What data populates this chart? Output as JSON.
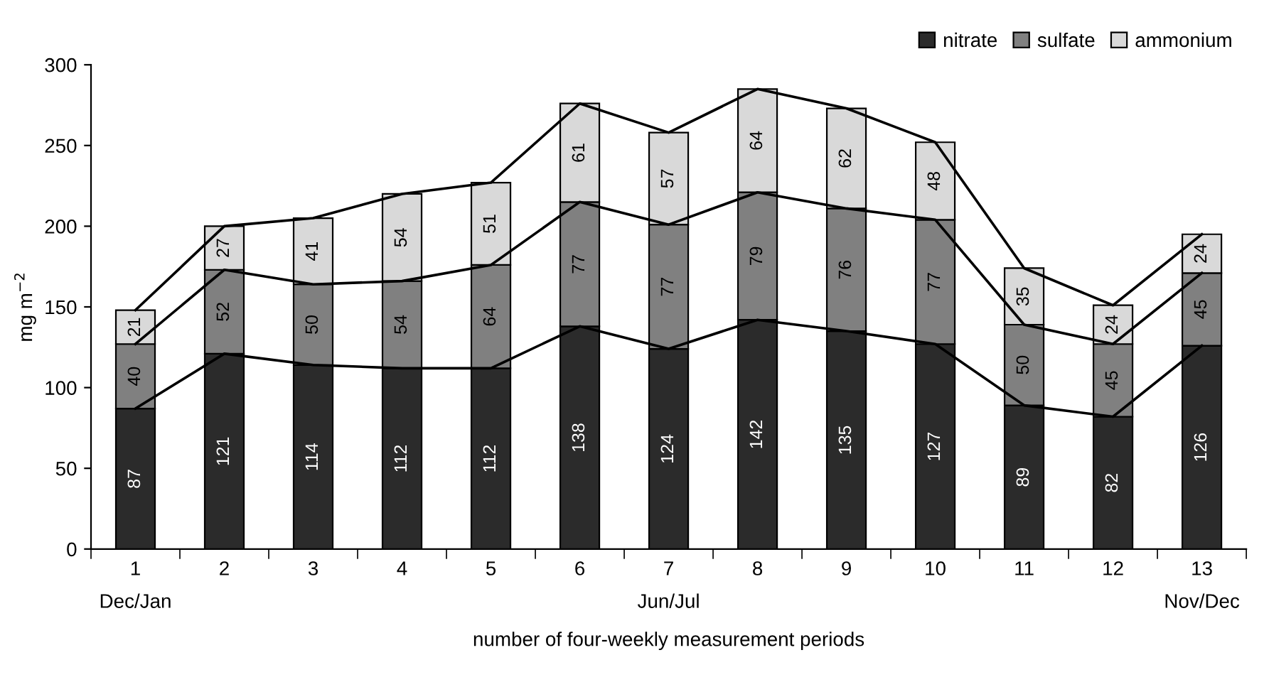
{
  "chart_data": {
    "type": "bar",
    "stacked": true,
    "xlabel": "number of four-weekly measurement periods",
    "ylabel": "mg m$^{−2}$",
    "categories": [
      "1\nDec/Jan",
      "2",
      "3",
      "4",
      "5",
      "6",
      "7\nJun/Jul",
      "8",
      "9",
      "10",
      "11",
      "12",
      "13\nNov/Dec"
    ],
    "series": [
      {
        "name": "nitrate",
        "color": "#2b2b2b",
        "values": [
          87,
          121,
          114,
          112,
          112,
          138,
          124,
          142,
          135,
          127,
          89,
          82,
          126
        ]
      },
      {
        "name": "sulfate",
        "color": "#808080",
        "values": [
          40,
          52,
          50,
          54,
          64,
          77,
          77,
          79,
          76,
          77,
          50,
          45,
          45
        ]
      },
      {
        "name": "ammonium",
        "color": "#d9d9d9",
        "values": [
          21,
          27,
          41,
          54,
          51,
          61,
          57,
          64,
          62,
          48,
          35,
          24,
          24
        ]
      },
      {
        "type": "line",
        "color": "#000000",
        "values": [
          87,
          121,
          114,
          112,
          112,
          138,
          124,
          142,
          135,
          127,
          89,
          82,
          126
        ],
        "value_labels": [
          null,
          null,
          null,
          null,
          null,
          null,
          null,
          null,
          null,
          null,
          null,
          null,
          null
        ]
      },
      {
        "type": "line",
        "color": "#000000",
        "values": [
          127,
          173,
          164,
          166,
          176,
          215,
          201,
          221,
          211,
          204,
          139,
          127,
          171
        ],
        "value_labels": [
          null,
          null,
          null,
          null,
          null,
          null,
          null,
          null,
          null,
          null,
          null,
          null,
          null
        ]
      },
      {
        "type": "line",
        "color": "#000000",
        "values": [
          148,
          200,
          205,
          220,
          227,
          276,
          258,
          285,
          273,
          252,
          174,
          151,
          195
        ],
        "value_labels": [
          null,
          null,
          null,
          null,
          null,
          null,
          null,
          null,
          null,
          null,
          null,
          null,
          null
        ]
      }
    ],
    "ylim": [
      0,
      300
    ],
    "yticks": [
      0,
      50,
      100,
      150,
      200,
      250,
      300
    ],
    "data_labels": true,
    "legend": "top right",
    "grid": false
  }
}
